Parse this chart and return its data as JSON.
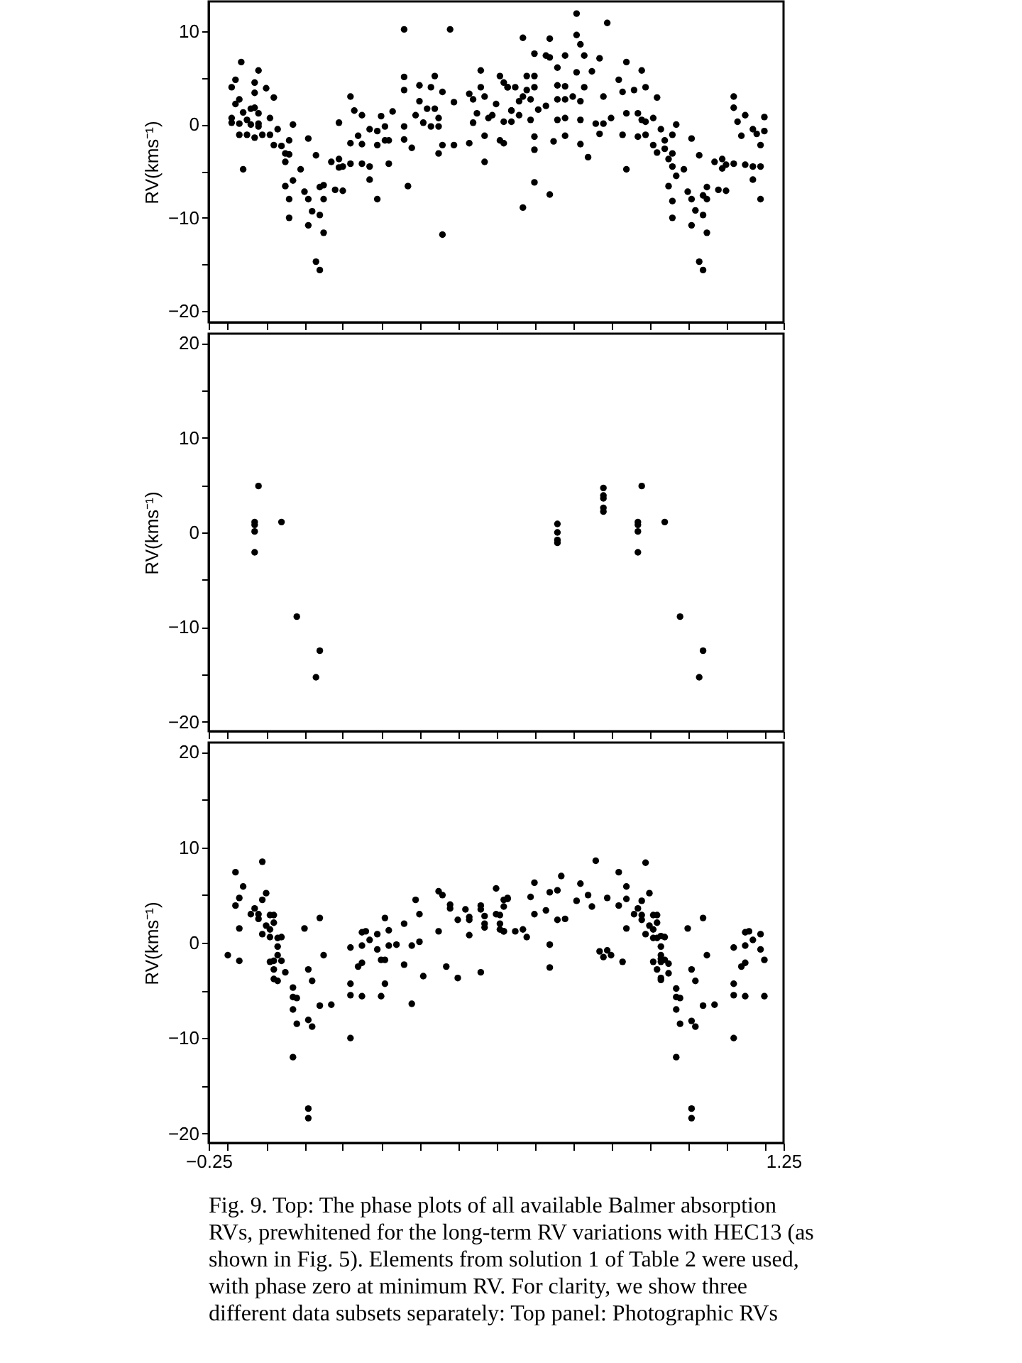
{
  "chart_data": [
    {
      "type": "scatter",
      "ylabel": "RV(kms⁻¹)",
      "marker": "circle",
      "grid": false,
      "legend": false,
      "tick_labels": "y",
      "xlim": [
        -0.25,
        1.25
      ],
      "ylim": [
        -21.2,
        13.2
      ],
      "xticks": [
        {
          "value": -0.25,
          "label": null
        },
        {
          "value": -0.2,
          "label": null
        },
        {
          "value": -0.1,
          "label": null
        },
        {
          "value": 0,
          "label": null
        },
        {
          "value": 0.1,
          "label": null
        },
        {
          "value": 0.2,
          "label": null
        },
        {
          "value": 0.3,
          "label": null
        },
        {
          "value": 0.4,
          "label": null
        },
        {
          "value": 0.5,
          "label": null
        },
        {
          "value": 0.6,
          "label": null
        },
        {
          "value": 0.7,
          "label": null
        },
        {
          "value": 0.8,
          "label": null
        },
        {
          "value": 0.9,
          "label": null
        },
        {
          "value": 1.0,
          "label": null
        },
        {
          "value": 1.1,
          "label": null
        },
        {
          "value": 1.2,
          "label": null
        },
        {
          "value": 1.25,
          "label": null
        }
      ],
      "yticks": [
        -20,
        {
          "value": -15,
          "label": null
        },
        -10,
        {
          "value": -5,
          "label": null
        },
        0,
        {
          "value": 5,
          "label": null
        },
        10
      ],
      "series": [
        {
          "color": "#000000",
          "x": [
            -0.165,
            -0.18,
            -0.12,
            -0.19,
            -0.13,
            -0.1,
            -0.13,
            -0.08,
            -0.17,
            -0.18,
            -0.19,
            -0.16,
            -0.14,
            -0.13,
            -0.12,
            -0.19,
            -0.17,
            -0.15,
            -0.14,
            -0.12,
            -0.12,
            -0.17,
            -0.15,
            -0.13,
            -0.11,
            -0.09,
            -0.09,
            -0.16,
            -0.08,
            -0.07,
            -0.06,
            -0.05,
            -0.04,
            -0.03,
            -0.05,
            -0.04,
            -0.05,
            -0.04,
            -0.03,
            -0.04,
            -0.01,
            0.0,
            0.01,
            0.03,
            0.01,
            0.02,
            0.01,
            0.04,
            0.04,
            0.05,
            0.05,
            0.05,
            0.03,
            0.04,
            0.08,
            0.1,
            0.07,
            0.09,
            0.09,
            0.1,
            0.12,
            0.09,
            0.12,
            0.13,
            0.15,
            0.12,
            0.14,
            0.15,
            0.15,
            0.17,
            0.17,
            0.19,
            0.17,
            0.19,
            0.2,
            0.21,
            0.19,
            0.21,
            0.22,
            0.23,
            0.22,
            0.26,
            0.38,
            0.26,
            0.26,
            0.26,
            0.26,
            0.27,
            0.28,
            0.29,
            0.3,
            0.3,
            0.31,
            0.32,
            0.33,
            0.34,
            0.34,
            0.35,
            0.35,
            0.33,
            0.36,
            0.36,
            0.35,
            0.36,
            0.39,
            0.39,
            0.43,
            0.43,
            0.44,
            0.44,
            0.45,
            0.46,
            0.46,
            0.47,
            0.47,
            0.47,
            0.48,
            0.49,
            0.5,
            0.51,
            0.51,
            0.52,
            0.52,
            0.53,
            0.54,
            0.54,
            0.71,
            0.79,
            0.57,
            0.64,
            0.71,
            0.72,
            0.6,
            0.63,
            0.64,
            0.68,
            0.73,
            0.77,
            0.66,
            0.71,
            0.75,
            0.84,
            0.88,
            0.53,
            0.55,
            0.58,
            0.6,
            0.58,
            0.6,
            0.66,
            0.68,
            0.73,
            0.57,
            0.56,
            0.59,
            0.63,
            0.61,
            0.66,
            0.68,
            0.7,
            0.72,
            0.78,
            0.82,
            0.83,
            0.86,
            0.89,
            0.92,
            0.54,
            0.56,
            0.52,
            0.59,
            0.66,
            0.68,
            0.72,
            0.76,
            0.78,
            0.8,
            0.84,
            0.87,
            0.88,
            0.89,
            0.91,
            0.93,
            0.97,
            0.6,
            0.65,
            0.68,
            0.72,
            0.74,
            0.77,
            0.83,
            0.87,
            0.89,
            0.91,
            0.92,
            0.94,
            0.96,
            0.94,
            0.96,
            0.95,
            0.96,
            0.97,
            0.99,
            1.01,
            1.03,
            0.95,
            0.96,
            0.96,
            1.0,
            1.01,
            1.02,
            1.01,
            1.04,
            1.05,
            1.05,
            1.04,
            1.05,
            1.03,
            1.04,
            1.08,
            1.1,
            1.07,
            1.09,
            1.09,
            1.1,
            1.12,
            1.12,
            1.12,
            1.13,
            1.15,
            1.14,
            1.17,
            1.18,
            1.2,
            1.19,
            1.15,
            1.17,
            1.19,
            1.17,
            1.19,
            0.57,
            0.6,
            0.6,
            0.64,
            0.84,
            1.2
          ],
          "values": [
            6.7,
            4.8,
            5.8,
            4.0,
            4.5,
            3.9,
            3.4,
            2.9,
            2.7,
            2.2,
            0.7,
            1.3,
            1.7,
            1.8,
            1.2,
            0.2,
            0.1,
            0.5,
            0.0,
            -0.2,
            0.1,
            -1.1,
            -1.1,
            -1.4,
            -1.1,
            0.7,
            -1.1,
            -4.8,
            -2.2,
            -0.5,
            -2.3,
            -3.1,
            -1.7,
            0.0,
            -4.0,
            -3.2,
            -6.6,
            -8.0,
            -6.0,
            -10.0,
            -4.8,
            -7.2,
            -1.5,
            -3.3,
            -8.0,
            -9.3,
            -10.8,
            -9.7,
            -6.7,
            -6.5,
            -8.0,
            -11.6,
            -14.7,
            -15.6,
            -7.0,
            -7.1,
            -4.0,
            -3.7,
            -4.6,
            -4.5,
            -4.2,
            0.2,
            3.0,
            1.5,
            1.0,
            -2.0,
            -1.2,
            -2.1,
            -4.2,
            -4.5,
            -5.9,
            -8.0,
            -0.5,
            -0.7,
            0.9,
            -0.2,
            -2.2,
            -1.7,
            -1.7,
            1.4,
            -4.2,
            10.2,
            10.2,
            5.1,
            3.7,
            -0.2,
            -1.6,
            -6.6,
            -2.5,
            1.0,
            4.2,
            2.5,
            0.2,
            1.7,
            4.0,
            5.2,
            1.7,
            -0.2,
            0.7,
            -0.2,
            3.5,
            -2.2,
            -3.1,
            -11.8,
            2.4,
            -2.2,
            3.3,
            -2.0,
            2.7,
            0.2,
            1.2,
            5.8,
            4.0,
            -4.0,
            -1.2,
            3.0,
            0.7,
            1.0,
            2.2,
            -1.7,
            5.2,
            -2.0,
            4.5,
            4.0,
            1.5,
            0.3,
            11.9,
            10.9,
            9.3,
            9.2,
            9.6,
            8.6,
            7.6,
            7.4,
            7.2,
            7.4,
            7.4,
            7.1,
            6.1,
            5.6,
            5.7,
            6.7,
            5.8,
            4.0,
            4.0,
            5.2,
            5.2,
            3.7,
            4.0,
            4.2,
            4.1,
            4.0,
            3.0,
            2.5,
            2.7,
            2.0,
            1.6,
            2.7,
            2.7,
            3.0,
            2.5,
            3.0,
            4.8,
            3.5,
            3.7,
            4.0,
            2.9,
            1.5,
            1.0,
            0.3,
            0.5,
            0.5,
            0.7,
            0.5,
            0.1,
            0.1,
            0.7,
            1.2,
            1.2,
            0.5,
            0.3,
            0.7,
            -0.5,
            0.0,
            -1.3,
            -1.8,
            -1.2,
            -2.1,
            -3.5,
            -1.0,
            -1.1,
            -1.3,
            -1.1,
            -2.2,
            -3.0,
            -1.7,
            -1.1,
            -2.6,
            -3.1,
            -3.7,
            -4.5,
            -5.5,
            -4.8,
            -1.5,
            -3.3,
            -6.6,
            -8.2,
            -10.0,
            -7.2,
            -8.0,
            -9.2,
            -10.8,
            -7.6,
            -6.7,
            -8.0,
            -9.7,
            -11.6,
            -14.7,
            -15.6,
            -7.0,
            -7.1,
            -4.0,
            -3.7,
            -4.7,
            -4.3,
            -4.2,
            3.0,
            1.8,
            0.3,
            1.0,
            -1.2,
            -0.5,
            -1.0,
            -0.7,
            -2.2,
            -4.3,
            -4.5,
            -4.5,
            -5.9,
            -8.0,
            -8.9,
            -2.7,
            -6.2,
            -7.5,
            -4.8,
            0.8
          ]
        }
      ]
    },
    {
      "type": "scatter",
      "ylabel": "RV(kms⁻¹)",
      "marker": "circle",
      "grid": false,
      "legend": false,
      "tick_labels": "y",
      "xlim": [
        -0.25,
        1.25
      ],
      "ylim": [
        -21,
        21
      ],
      "xticks": [
        {
          "value": -0.25,
          "label": null
        },
        {
          "value": -0.2,
          "label": null
        },
        {
          "value": -0.1,
          "label": null
        },
        {
          "value": 0,
          "label": null
        },
        {
          "value": 0.1,
          "label": null
        },
        {
          "value": 0.2,
          "label": null
        },
        {
          "value": 0.3,
          "label": null
        },
        {
          "value": 0.4,
          "label": null
        },
        {
          "value": 0.5,
          "label": null
        },
        {
          "value": 0.6,
          "label": null
        },
        {
          "value": 0.7,
          "label": null
        },
        {
          "value": 0.8,
          "label": null
        },
        {
          "value": 0.9,
          "label": null
        },
        {
          "value": 1.0,
          "label": null
        },
        {
          "value": 1.1,
          "label": null
        },
        {
          "value": 1.2,
          "label": null
        },
        {
          "value": 1.25,
          "label": null
        }
      ],
      "yticks": [
        -20,
        {
          "value": -15,
          "label": null
        },
        -10,
        {
          "value": -5,
          "label": null
        },
        0,
        {
          "value": 5,
          "label": null
        },
        10,
        {
          "value": 15,
          "label": null
        },
        20
      ],
      "series": [
        {
          "color": "#000000",
          "x": [
            -0.12,
            -0.13,
            -0.13,
            -0.13,
            -0.13,
            -0.06,
            -0.02,
            0.04,
            0.03,
            0.66,
            0.66,
            0.66,
            0.66,
            0.78,
            0.78,
            0.78,
            0.78,
            0.78,
            0.88,
            0.87,
            0.87,
            0.87,
            0.87,
            0.94,
            0.98,
            1.04,
            1.03
          ],
          "values": [
            4.9,
            1.1,
            0.8,
            0.1,
            -2.1,
            1.1,
            -8.9,
            -12.5,
            -15.3,
            0.9,
            0.0,
            -0.8,
            -1.1,
            4.7,
            3.9,
            3.6,
            2.6,
            2.2,
            4.9,
            1.1,
            0.8,
            0.1,
            -2.1,
            1.1,
            -8.9,
            -12.5,
            -15.3
          ]
        }
      ]
    },
    {
      "type": "scatter",
      "ylabel": "RV(kms⁻¹)",
      "marker": "circle",
      "grid": false,
      "legend": false,
      "xlim": [
        -0.25,
        1.25
      ],
      "ylim": [
        -21,
        21
      ],
      "xticks": [
        {
          "value": -0.25,
          "label": "−0.25"
        },
        {
          "value": -0.2,
          "label": null
        },
        {
          "value": -0.1,
          "label": null
        },
        {
          "value": 0,
          "label": null
        },
        {
          "value": 0.1,
          "label": null
        },
        {
          "value": 0.2,
          "label": null
        },
        {
          "value": 0.3,
          "label": null
        },
        {
          "value": 0.4,
          "label": null
        },
        {
          "value": 0.5,
          "label": null
        },
        {
          "value": 0.6,
          "label": null
        },
        {
          "value": 0.7,
          "label": null
        },
        {
          "value": 0.8,
          "label": null
        },
        {
          "value": 0.9,
          "label": null
        },
        {
          "value": 1.0,
          "label": null
        },
        {
          "value": 1.1,
          "label": null
        },
        {
          "value": 1.2,
          "label": null
        },
        1.25
      ],
      "yticks": [
        -20,
        {
          "value": -15,
          "label": null
        },
        -10,
        {
          "value": -5,
          "label": null
        },
        0,
        {
          "value": 5,
          "label": null
        },
        10,
        {
          "value": 15,
          "label": null
        },
        20
      ],
      "annotations": [
        "Fig. 9. Top: The phase plots of all available Balmer absorption RVs, prewhitened for the long-term RV variations with HEC13 (as shown in Fig. 5). Elements from solution 1 of Table 2 were used, with phase zero at minimum RV. For clarity, we show three different data subsets separately: Top panel: Photographic RVs"
      ],
      "series": [
        {
          "color": "#000000",
          "x": [
            -0.2,
            -0.17,
            -0.18,
            -0.16,
            -0.17,
            -0.18,
            -0.17,
            -0.13,
            -0.14,
            -0.12,
            -0.12,
            -0.11,
            -0.11,
            -0.1,
            -0.11,
            -0.1,
            -0.09,
            -0.09,
            -0.09,
            -0.08,
            -0.08,
            -0.07,
            -0.06,
            -0.07,
            -0.07,
            -0.08,
            -0.09,
            -0.06,
            -0.05,
            -0.08,
            -0.08,
            -0.07,
            -0.03,
            -0.03,
            -0.02,
            -0.03,
            -0.02,
            -0.03,
            0.0,
            0.01,
            0.02,
            0.01,
            0.02,
            0.04,
            0.05,
            0.04,
            0.07,
            0.01,
            0.01,
            0.12,
            0.12,
            0.12,
            0.12,
            0.14,
            0.15,
            0.15,
            0.15,
            0.16,
            0.17,
            0.15,
            0.19,
            0.19,
            0.2,
            0.21,
            0.21,
            0.22,
            0.21,
            0.2,
            0.22,
            0.24,
            0.26,
            0.26,
            0.28,
            0.29,
            0.3,
            0.3,
            0.28,
            0.31,
            0.35,
            0.36,
            0.38,
            0.38,
            0.35,
            0.37,
            0.4,
            0.4,
            0.42,
            0.43,
            0.43,
            0.43,
            0.46,
            0.46,
            0.46,
            0.47,
            0.47,
            0.47,
            0.5,
            0.5,
            0.51,
            0.51,
            0.51,
            0.52,
            0.52,
            0.53,
            0.52,
            0.53,
            0.52,
            0.55,
            0.57,
            0.58,
            0.59,
            0.6,
            0.6,
            0.63,
            0.64,
            0.64,
            0.64,
            0.66,
            0.66,
            0.67,
            0.68,
            0.71,
            0.72,
            0.74,
            0.75,
            0.76,
            0.79,
            0.77,
            0.78,
            0.79,
            0.8,
            0.83,
            0.82,
            0.82,
            0.84,
            0.84,
            0.84,
            0.86,
            0.87,
            0.88,
            0.88,
            0.88,
            0.89,
            0.89,
            0.9,
            0.9,
            0.91,
            0.91,
            0.91,
            0.91,
            0.92,
            0.92,
            0.92,
            0.93,
            0.94,
            0.93,
            0.93,
            0.93,
            0.93,
            0.94,
            0.95,
            0.92,
            0.93,
            0.93,
            0.95,
            0.97,
            0.97,
            0.98,
            0.97,
            0.98,
            0.97,
            1.0,
            1.01,
            1.02,
            1.01,
            1.02,
            1.04,
            1.05,
            1.04,
            1.07,
            1.01,
            1.01,
            1.12,
            1.12,
            1.12,
            1.12,
            1.14,
            1.15,
            1.15,
            1.15,
            1.16,
            1.17,
            1.15,
            1.19,
            1.19,
            1.2,
            1.2
          ],
          "values": [
            -1.3,
            -1.9,
            7.4,
            5.9,
            4.7,
            3.9,
            1.5,
            3.6,
            3.0,
            3.0,
            2.5,
            4.5,
            8.5,
            5.2,
            0.9,
            1.8,
            2.9,
            1.4,
            0.6,
            2.9,
            2.1,
            0.5,
            0.6,
            -0.4,
            -1.3,
            -1.9,
            -2.0,
            -1.9,
            -3.1,
            -2.8,
            -3.8,
            -4.0,
            -4.7,
            -5.7,
            -5.8,
            -7.0,
            -8.5,
            -12.0,
            1.5,
            -2.8,
            -4.0,
            -8.1,
            -8.8,
            2.6,
            -1.3,
            -6.6,
            -6.5,
            -17.4,
            -18.4,
            -0.5,
            -4.3,
            -5.5,
            -10.0,
            -2.5,
            -2.1,
            -0.3,
            1.1,
            1.2,
            0.3,
            -5.6,
            0.9,
            -0.7,
            -1.8,
            -1.8,
            2.6,
            1.3,
            -4.3,
            -5.6,
            -0.3,
            -0.2,
            2.0,
            -2.3,
            -0.3,
            4.5,
            3.0,
            0.1,
            -6.4,
            -3.5,
            5.4,
            5.0,
            4.0,
            3.6,
            1.2,
            -2.5,
            -3.7,
            2.4,
            3.5,
            2.7,
            2.4,
            0.8,
            -3.1,
            3.5,
            3.9,
            2.8,
            2.0,
            1.6,
            5.7,
            3.0,
            2.9,
            2.0,
            1.4,
            3.8,
            4.5,
            4.7,
            1.2,
            4.6,
            1.2,
            1.2,
            1.4,
            0.6,
            4.8,
            3.0,
            6.3,
            3.4,
            -0.2,
            -2.6,
            5.3,
            2.4,
            5.5,
            7.0,
            2.5,
            4.4,
            6.2,
            5.0,
            3.8,
            8.6,
            4.7,
            -0.9,
            -1.5,
            -0.8,
            -1.3,
            -2.0,
            3.9,
            7.4,
            4.6,
            5.9,
            1.5,
            3.0,
            3.6,
            2.9,
            2.4,
            4.4,
            8.4,
            0.9,
            1.8,
            5.2,
            2.9,
            1.4,
            0.5,
            -2.0,
            2.1,
            2.9,
            0.5,
            0.7,
            0.6,
            -0.4,
            -1.3,
            -1.7,
            -2.0,
            -1.8,
            -2.2,
            -2.8,
            -3.9,
            -3.7,
            -3.2,
            -4.8,
            -5.7,
            -5.8,
            -7.0,
            -8.5,
            -12.0,
            1.5,
            -2.8,
            -4.0,
            -8.2,
            -8.8,
            2.6,
            -1.3,
            -6.6,
            -6.5,
            -17.4,
            -18.4,
            -0.5,
            -4.3,
            -5.5,
            -10.0,
            -2.5,
            -2.1,
            -0.3,
            1.1,
            1.2,
            0.3,
            -5.6,
            0.9,
            -0.7,
            -1.8,
            -5.6
          ]
        }
      ]
    }
  ]
}
